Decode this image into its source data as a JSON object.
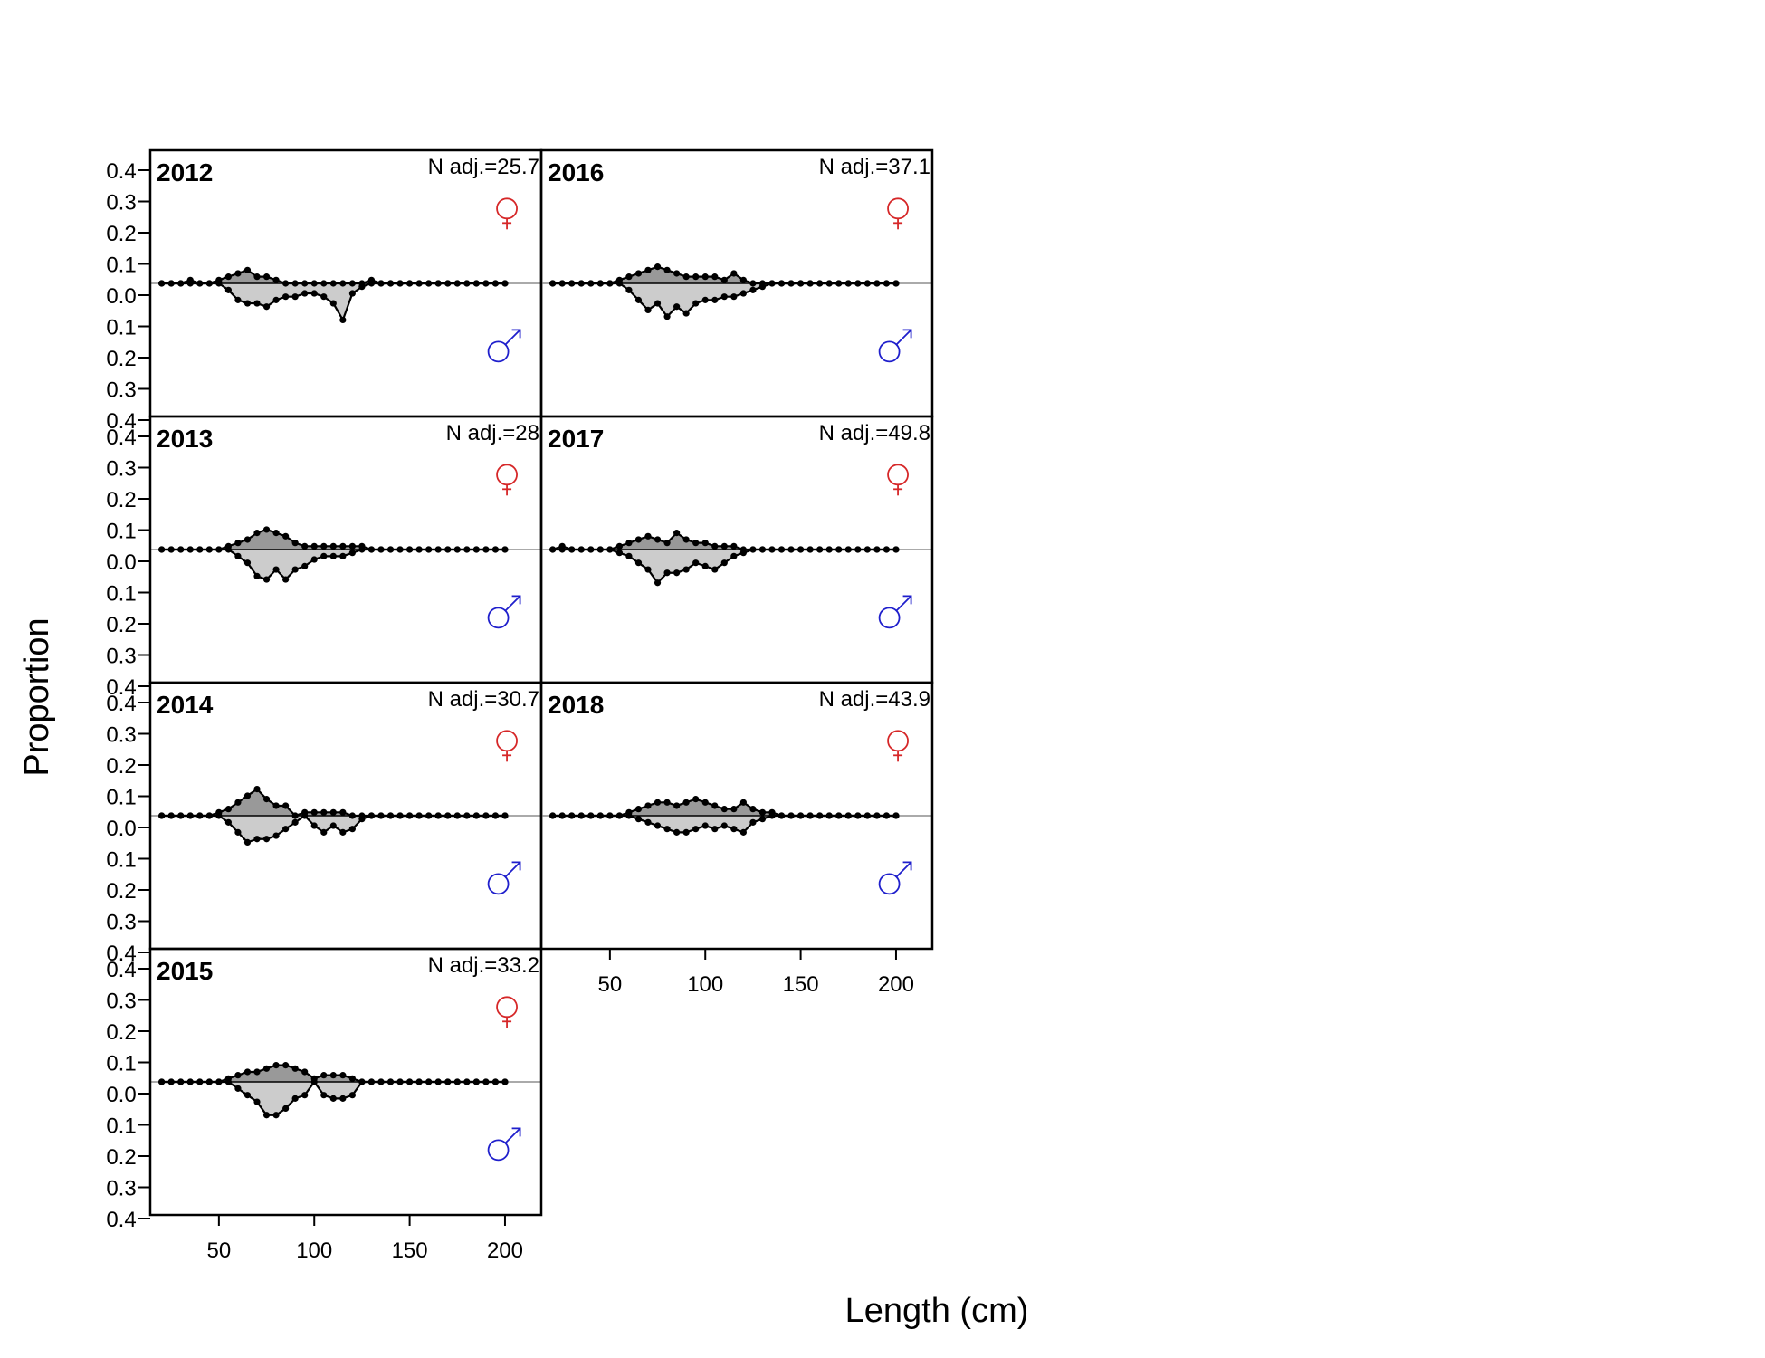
{
  "chart_data": {
    "type": "area",
    "xlabel": "Length (cm)",
    "ylabel": "Proportion",
    "x_ticks": [
      50,
      100,
      150,
      200
    ],
    "xlim": [
      14,
      219
    ],
    "y_tick_labels": [
      "0.4",
      "0.3",
      "0.2",
      "0.1",
      "0.0",
      "0.1",
      "0.2",
      "0.3",
      "0.4"
    ],
    "ylim": [
      -0.4,
      0.4
    ],
    "female_symbol": "♀",
    "male_symbol": "♂",
    "female_color": "#d62728",
    "male_color": "#1f1fcc",
    "female_fill": "#999999",
    "male_fill": "#cccccc",
    "x": [
      20,
      25,
      30,
      35,
      40,
      45,
      50,
      55,
      60,
      65,
      70,
      75,
      80,
      85,
      90,
      95,
      100,
      105,
      110,
      115,
      120,
      125,
      130,
      135,
      140,
      145,
      150,
      155,
      160,
      165,
      170,
      175,
      180,
      185,
      190,
      195,
      200
    ],
    "panels": [
      {
        "year": "2012",
        "n_adj": "N adj.=25.7",
        "female": [
          0,
          0,
          0,
          0.01,
          0,
          0,
          0.01,
          0.02,
          0.03,
          0.04,
          0.02,
          0.02,
          0.01,
          0,
          0,
          0,
          0,
          0,
          0,
          0,
          0,
          0,
          0.01,
          0,
          0,
          0,
          0,
          0,
          0,
          0,
          0,
          0,
          0,
          0,
          0,
          0,
          0
        ],
        "male": [
          0,
          0,
          0,
          0,
          0,
          0,
          0,
          0.02,
          0.05,
          0.06,
          0.06,
          0.07,
          0.05,
          0.04,
          0.04,
          0.03,
          0.03,
          0.04,
          0.06,
          0.11,
          0.03,
          0.01,
          0,
          0,
          0,
          0,
          0,
          0,
          0,
          0,
          0,
          0,
          0,
          0,
          0,
          0,
          0
        ]
      },
      {
        "year": "2013",
        "n_adj": "N adj.=28",
        "female": [
          0,
          0,
          0,
          0,
          0,
          0,
          0,
          0.01,
          0.02,
          0.03,
          0.05,
          0.06,
          0.05,
          0.04,
          0.02,
          0.01,
          0.01,
          0.01,
          0.01,
          0.01,
          0.01,
          0.01,
          0,
          0,
          0,
          0,
          0,
          0,
          0,
          0,
          0,
          0,
          0,
          0,
          0,
          0,
          0
        ],
        "male": [
          0,
          0,
          0,
          0,
          0,
          0,
          0,
          0,
          0.02,
          0.04,
          0.08,
          0.09,
          0.06,
          0.09,
          0.06,
          0.05,
          0.03,
          0.02,
          0.02,
          0.02,
          0.01,
          0,
          0,
          0,
          0,
          0,
          0,
          0,
          0,
          0,
          0,
          0,
          0,
          0,
          0,
          0,
          0
        ]
      },
      {
        "year": "2014",
        "n_adj": "N adj.=30.7",
        "female": [
          0,
          0,
          0,
          0,
          0,
          0,
          0.01,
          0.02,
          0.04,
          0.06,
          0.08,
          0.05,
          0.03,
          0.03,
          0,
          0.01,
          0.01,
          0.01,
          0.01,
          0.01,
          0,
          0,
          0,
          0,
          0,
          0,
          0,
          0,
          0,
          0,
          0,
          0,
          0,
          0,
          0,
          0,
          0
        ],
        "male": [
          0,
          0,
          0,
          0,
          0,
          0,
          0,
          0.02,
          0.05,
          0.08,
          0.07,
          0.07,
          0.06,
          0.04,
          0.02,
          0,
          0.03,
          0.05,
          0.03,
          0.05,
          0.04,
          0.01,
          0,
          0,
          0,
          0,
          0,
          0,
          0,
          0,
          0,
          0,
          0,
          0,
          0,
          0,
          0
        ]
      },
      {
        "year": "2015",
        "n_adj": "N adj.=33.2",
        "female": [
          0,
          0,
          0,
          0,
          0,
          0,
          0,
          0.01,
          0.02,
          0.03,
          0.03,
          0.04,
          0.05,
          0.05,
          0.04,
          0.03,
          0.01,
          0.02,
          0.02,
          0.02,
          0.01,
          0,
          0,
          0,
          0,
          0,
          0,
          0,
          0,
          0,
          0,
          0,
          0,
          0,
          0,
          0,
          0
        ],
        "male": [
          0,
          0,
          0,
          0,
          0,
          0,
          0,
          0,
          0.02,
          0.04,
          0.06,
          0.1,
          0.1,
          0.08,
          0.05,
          0.04,
          0,
          0.04,
          0.05,
          0.05,
          0.04,
          0,
          0,
          0,
          0,
          0,
          0,
          0,
          0,
          0,
          0,
          0,
          0,
          0,
          0,
          0,
          0
        ]
      },
      {
        "year": "2016",
        "n_adj": "N adj.=37.1",
        "female": [
          0,
          0,
          0,
          0,
          0,
          0,
          0,
          0.01,
          0.02,
          0.03,
          0.04,
          0.05,
          0.04,
          0.03,
          0.02,
          0.02,
          0.02,
          0.02,
          0.01,
          0.03,
          0.01,
          0,
          0,
          0,
          0,
          0,
          0,
          0,
          0,
          0,
          0,
          0,
          0,
          0,
          0,
          0,
          0
        ],
        "male": [
          0,
          0,
          0,
          0,
          0,
          0,
          0,
          0,
          0.02,
          0.05,
          0.08,
          0.06,
          0.1,
          0.07,
          0.09,
          0.06,
          0.05,
          0.05,
          0.04,
          0.04,
          0.03,
          0.02,
          0.01,
          0,
          0,
          0,
          0,
          0,
          0,
          0,
          0,
          0,
          0,
          0,
          0,
          0,
          0
        ]
      },
      {
        "year": "2017",
        "n_adj": "N adj.=49.8",
        "female": [
          0,
          0.01,
          0,
          0,
          0,
          0,
          0,
          0.01,
          0.02,
          0.03,
          0.04,
          0.03,
          0.02,
          0.05,
          0.03,
          0.02,
          0.02,
          0.01,
          0.01,
          0.01,
          0,
          0,
          0,
          0,
          0,
          0,
          0,
          0,
          0,
          0,
          0,
          0,
          0,
          0,
          0,
          0,
          0
        ],
        "male": [
          0,
          0,
          0,
          0,
          0,
          0,
          0,
          0.01,
          0.02,
          0.04,
          0.06,
          0.1,
          0.07,
          0.07,
          0.06,
          0.04,
          0.05,
          0.06,
          0.04,
          0.02,
          0.01,
          0,
          0,
          0,
          0,
          0,
          0,
          0,
          0,
          0,
          0,
          0,
          0,
          0,
          0,
          0,
          0
        ]
      },
      {
        "year": "2018",
        "n_adj": "N adj.=43.9",
        "female": [
          0,
          0,
          0,
          0,
          0,
          0,
          0,
          0,
          0.01,
          0.02,
          0.03,
          0.04,
          0.04,
          0.03,
          0.04,
          0.05,
          0.04,
          0.03,
          0.02,
          0.02,
          0.04,
          0.02,
          0.01,
          0.01,
          0,
          0,
          0,
          0,
          0,
          0,
          0,
          0,
          0,
          0,
          0,
          0,
          0
        ],
        "male": [
          0,
          0,
          0,
          0,
          0,
          0,
          0,
          0,
          0,
          0.01,
          0.02,
          0.03,
          0.04,
          0.05,
          0.05,
          0.04,
          0.03,
          0.04,
          0.03,
          0.04,
          0.05,
          0.02,
          0.01,
          0,
          0,
          0,
          0,
          0,
          0,
          0,
          0,
          0,
          0,
          0,
          0,
          0,
          0
        ]
      }
    ]
  }
}
